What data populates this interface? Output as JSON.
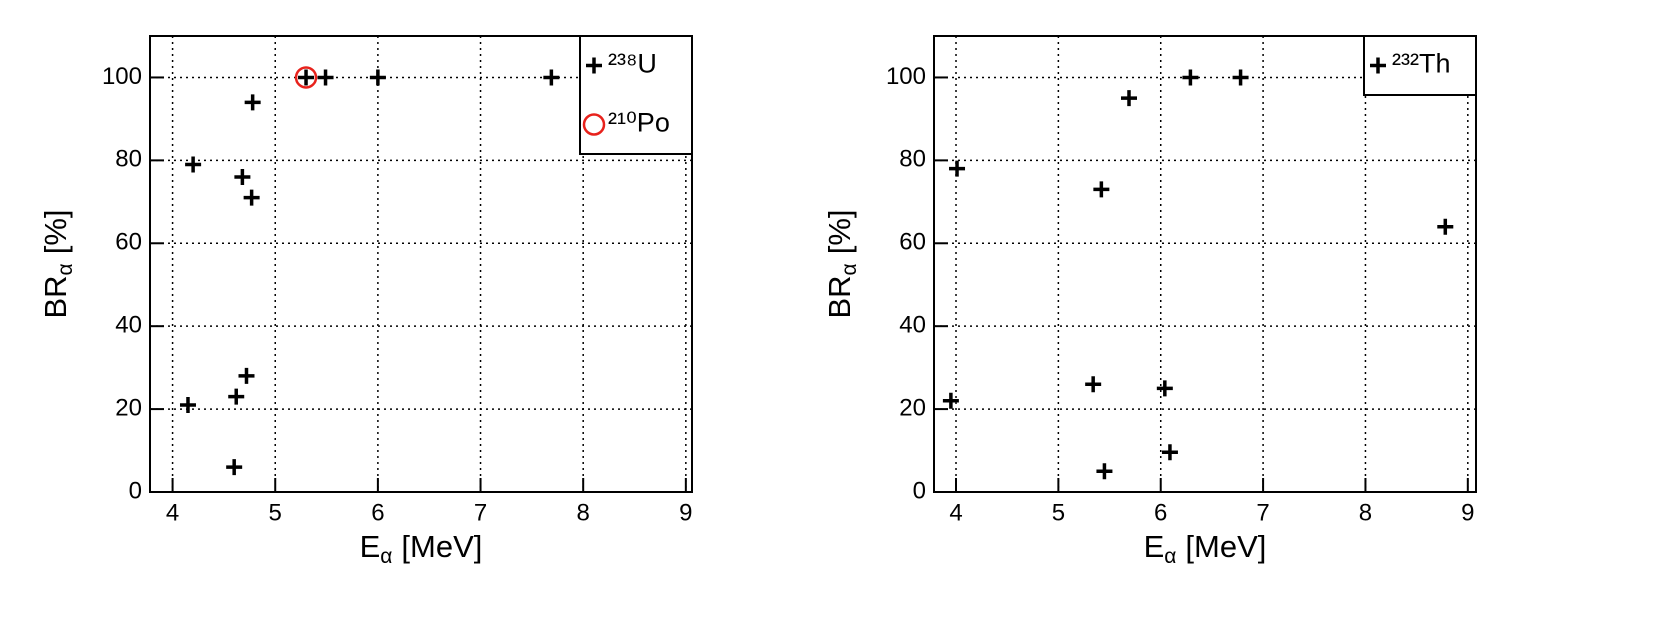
{
  "chart_data": [
    {
      "type": "scatter",
      "xlabel": {
        "text": "E",
        "sub": "α",
        "unit": "[MeV]"
      },
      "ylabel": {
        "text": "BR",
        "sub": "α",
        "unit": "[%]"
      },
      "xlim": [
        3.78,
        9.06
      ],
      "ylim": [
        0,
        110
      ],
      "xticks": [
        4,
        5,
        6,
        7,
        8,
        9
      ],
      "yticks": [
        0,
        20,
        40,
        60,
        80,
        100
      ],
      "grid": true,
      "legend": "top-right",
      "series": [
        {
          "name": "²³⁸U",
          "color": "#000000",
          "marker": "plus",
          "x": [
            4.15,
            4.2,
            4.78,
            4.68,
            4.77,
            4.72,
            4.62,
            4.6,
            5.3,
            5.49,
            6.0,
            7.69
          ],
          "values": [
            21,
            79,
            94,
            76,
            71,
            28,
            23,
            6,
            100,
            100,
            100,
            100
          ]
        },
        {
          "name": "²¹⁰Po",
          "color": "#e8221c",
          "marker": "circle",
          "x": [
            5.3
          ],
          "values": [
            100
          ]
        }
      ]
    },
    {
      "type": "scatter",
      "xlabel": {
        "text": "E",
        "sub": "α",
        "unit": "[MeV]"
      },
      "ylabel": {
        "text": "BR",
        "sub": "α",
        "unit": "[%]"
      },
      "xlim": [
        3.785,
        9.08
      ],
      "ylim": [
        0,
        110
      ],
      "xticks": [
        4,
        5,
        6,
        7,
        8,
        9
      ],
      "yticks": [
        0,
        20,
        40,
        60,
        80,
        100
      ],
      "grid": true,
      "legend": "top-right",
      "series": [
        {
          "name": "²³²Th",
          "color": "#000000",
          "marker": "plus",
          "x": [
            3.95,
            4.01,
            5.69,
            5.42,
            5.34,
            5.45,
            6.04,
            6.09,
            6.29,
            6.78,
            8.78
          ],
          "values": [
            22,
            78,
            95,
            73,
            26,
            5,
            25,
            9.6,
            100,
            100,
            64
          ]
        }
      ]
    }
  ]
}
